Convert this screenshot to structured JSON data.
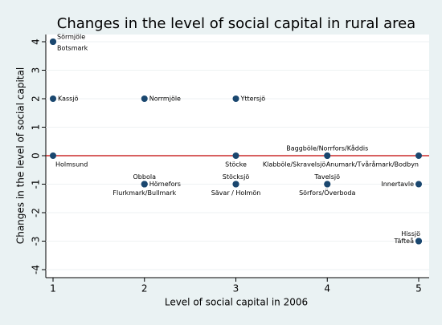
{
  "chart_data": {
    "type": "scatter",
    "title": "Changes in the level of social capital in rural area",
    "x_label": "Level of social capital in 2006",
    "y_label": "Changes in the level of social capital",
    "xlim": [
      1,
      5
    ],
    "ylim": [
      -4,
      4
    ],
    "xticks": [
      1,
      2,
      3,
      4,
      5
    ],
    "yticks": [
      -4,
      -3,
      -2,
      -1,
      0,
      1,
      2,
      3,
      4
    ],
    "grid": true,
    "color": "#1a476f",
    "reference_line": {
      "value": 0,
      "color": "#c00000"
    },
    "points": [
      {
        "label": "Sörmjöle",
        "x": 1,
        "y": 4
      },
      {
        "label": "Botsmark",
        "x": 1,
        "y": 4
      },
      {
        "label": "Kassjö",
        "x": 1,
        "y": 2
      },
      {
        "label": "Norrmjöle",
        "x": 2,
        "y": 2
      },
      {
        "label": "Yttersjö",
        "x": 3,
        "y": 2
      },
      {
        "label": "Holmsund",
        "x": 1,
        "y": 0
      },
      {
        "label": "Stöcke",
        "x": 3,
        "y": 0
      },
      {
        "label": "Baggböle/Norrfors/Kåddis",
        "x": 4,
        "y": 0
      },
      {
        "label": "Klabböle/Skravelsjö",
        "x": 4,
        "y": 0
      },
      {
        "label": "Anumark/Tvåråmark/Bodbyn",
        "x": 5,
        "y": 0
      },
      {
        "label": "Obbola",
        "x": 2,
        "y": -1
      },
      {
        "label": "Hörnefors",
        "x": 2,
        "y": -1
      },
      {
        "label": "Flurkmark/Bullmark",
        "x": 2,
        "y": -1
      },
      {
        "label": "Stöcksjö",
        "x": 3,
        "y": -1
      },
      {
        "label": "Sävar / Holmön",
        "x": 3,
        "y": -1
      },
      {
        "label": "Tavelsjö",
        "x": 4,
        "y": -1
      },
      {
        "label": "Sörfors/Överboda",
        "x": 4,
        "y": -1
      },
      {
        "label": "Innertavle",
        "x": 5,
        "y": -1
      },
      {
        "label": "Hissjö",
        "x": 5,
        "y": -3
      },
      {
        "label": "Täfteå",
        "x": 5,
        "y": -3
      }
    ]
  }
}
